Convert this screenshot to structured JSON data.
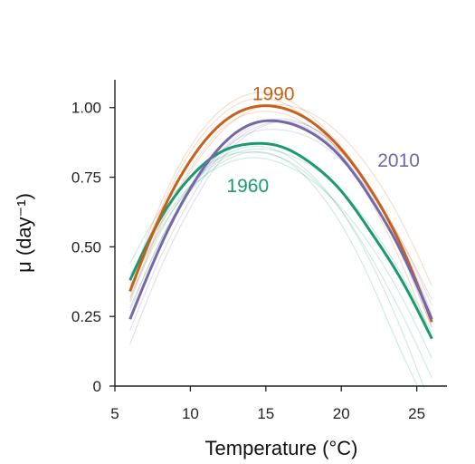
{
  "chart_data": {
    "type": "line",
    "xlabel": "Temperature (°C)",
    "ylabel": "μ (day⁻¹)",
    "xlim": [
      5,
      27
    ],
    "ylim": [
      0,
      1.1
    ],
    "x_ticks": [
      {
        "value": 5,
        "label": "5"
      },
      {
        "value": 10,
        "label": "10"
      },
      {
        "value": 15,
        "label": "15"
      },
      {
        "value": 20,
        "label": "20"
      },
      {
        "value": 25,
        "label": "25"
      }
    ],
    "y_ticks": [
      {
        "value": 0,
        "label": "0"
      },
      {
        "value": 0.25,
        "label": "0.25"
      },
      {
        "value": 0.5,
        "label": "0.50"
      },
      {
        "value": 0.75,
        "label": "0.75"
      },
      {
        "value": 1.0,
        "label": "1.00"
      }
    ],
    "grid": false,
    "legend": "inline labels",
    "x": [
      6,
      8,
      10,
      12,
      14,
      16,
      18,
      20,
      22,
      24,
      26
    ],
    "series": [
      {
        "name": "1960",
        "color": "#1a9a70",
        "values": [
          0.38,
          0.6,
          0.75,
          0.84,
          0.87,
          0.86,
          0.8,
          0.7,
          0.55,
          0.38,
          0.17
        ],
        "label_x": 13.8,
        "label_y": 0.72
      },
      {
        "name": "1990",
        "color": "#c9601a",
        "values": [
          0.34,
          0.61,
          0.81,
          0.94,
          1.0,
          1.0,
          0.95,
          0.85,
          0.7,
          0.5,
          0.23
        ],
        "label_x": 15.5,
        "label_y": 1.05
      },
      {
        "name": "2010",
        "color": "#7468a8",
        "values": [
          0.24,
          0.5,
          0.71,
          0.86,
          0.94,
          0.95,
          0.91,
          0.82,
          0.67,
          0.48,
          0.24
        ],
        "label_x": 23.8,
        "label_y": 0.81
      }
    ],
    "background_series": [
      {
        "color": "#1a9a70",
        "values": [
          0.44,
          0.63,
          0.75,
          0.82,
          0.84,
          0.82,
          0.75,
          0.63,
          0.46,
          0.26,
          0.03
        ]
      },
      {
        "color": "#1a9a70",
        "values": [
          0.32,
          0.55,
          0.72,
          0.82,
          0.86,
          0.84,
          0.76,
          0.63,
          0.44,
          0.2,
          -0.08
        ]
      },
      {
        "color": "#1a9a70",
        "values": [
          0.4,
          0.58,
          0.72,
          0.81,
          0.85,
          0.84,
          0.79,
          0.7,
          0.57,
          0.4,
          0.19
        ]
      },
      {
        "color": "#1a9a70",
        "values": [
          0.28,
          0.52,
          0.7,
          0.8,
          0.84,
          0.82,
          0.73,
          0.58,
          0.37,
          0.12,
          -0.1
        ]
      },
      {
        "color": "#1a9a70",
        "values": [
          0.36,
          0.56,
          0.71,
          0.79,
          0.82,
          0.8,
          0.74,
          0.64,
          0.5,
          0.32,
          0.1
        ]
      },
      {
        "color": "#c9601a",
        "values": [
          0.37,
          0.65,
          0.86,
          0.99,
          1.05,
          1.04,
          0.97,
          0.86,
          0.7,
          0.48,
          0.21
        ]
      },
      {
        "color": "#c9601a",
        "values": [
          0.31,
          0.58,
          0.78,
          0.92,
          0.98,
          0.98,
          0.93,
          0.84,
          0.7,
          0.52,
          0.29
        ]
      },
      {
        "color": "#c9601a",
        "values": [
          0.35,
          0.63,
          0.84,
          0.97,
          1.03,
          1.02,
          0.95,
          0.83,
          0.66,
          0.44,
          0.17
        ]
      },
      {
        "color": "#c9601a",
        "values": [
          0.3,
          0.57,
          0.77,
          0.91,
          0.99,
          1.01,
          0.98,
          0.9,
          0.77,
          0.59,
          0.36
        ]
      },
      {
        "color": "#7468a8",
        "values": [
          0.2,
          0.46,
          0.67,
          0.83,
          0.92,
          0.95,
          0.92,
          0.83,
          0.68,
          0.47,
          0.21
        ]
      },
      {
        "color": "#7468a8",
        "values": [
          0.27,
          0.52,
          0.71,
          0.84,
          0.91,
          0.92,
          0.89,
          0.81,
          0.69,
          0.52,
          0.31
        ]
      },
      {
        "color": "#7468a8",
        "values": [
          0.15,
          0.42,
          0.64,
          0.81,
          0.91,
          0.95,
          0.93,
          0.85,
          0.71,
          0.51,
          0.26
        ]
      },
      {
        "color": "#7468a8",
        "values": [
          0.25,
          0.5,
          0.7,
          0.84,
          0.93,
          0.96,
          0.93,
          0.84,
          0.7,
          0.5,
          0.25
        ]
      }
    ]
  }
}
